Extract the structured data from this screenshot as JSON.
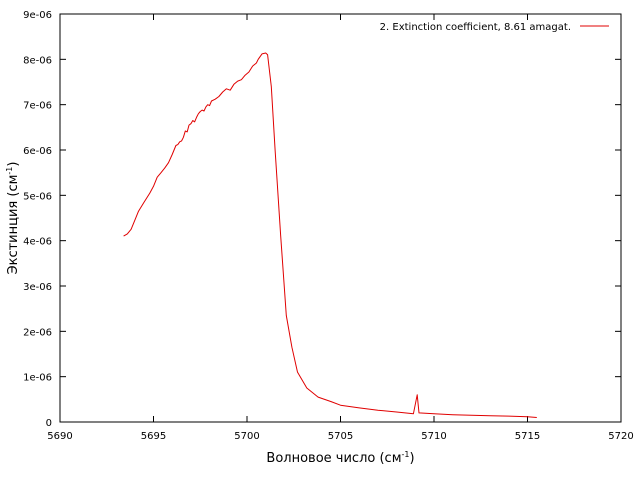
{
  "chart_data": {
    "type": "line",
    "title": "",
    "xlabel": "Волновое число (см",
    "xlabel_sup": "-1",
    "xlabel_suffix": ")",
    "ylabel": "Экстинция (см",
    "ylabel_sup": "-1",
    "ylabel_suffix": ")",
    "xlim": [
      5690,
      5720
    ],
    "ylim": [
      0,
      9e-06
    ],
    "x_ticks": [
      5690,
      5695,
      5700,
      5705,
      5710,
      5715,
      5720
    ],
    "x_tick_labels": [
      "5690",
      "5695",
      "5700",
      "5705",
      "5710",
      "5715",
      "5720"
    ],
    "y_ticks": [
      0,
      1e-06,
      2e-06,
      3e-06,
      4e-06,
      5e-06,
      6e-06,
      7e-06,
      8e-06,
      9e-06
    ],
    "y_tick_labels": [
      "0",
      "1e-06",
      "2e-06",
      "3e-06",
      "4e-06",
      "5e-06",
      "6e-06",
      "7e-06",
      "8e-06",
      "9e-06"
    ],
    "grid": false,
    "legend_position": "top-right",
    "series": [
      {
        "name": "2. Extinction coefficient, 8.61 amagat.",
        "color": "#e00000",
        "points": [
          [
            5693.4,
            4.1e-06
          ],
          [
            5693.6,
            4.15e-06
          ],
          [
            5693.8,
            4.25e-06
          ],
          [
            5694.0,
            4.45e-06
          ],
          [
            5694.2,
            4.65e-06
          ],
          [
            5694.5,
            4.85e-06
          ],
          [
            5694.8,
            5.05e-06
          ],
          [
            5695.0,
            5.2e-06
          ],
          [
            5695.2,
            5.4e-06
          ],
          [
            5695.4,
            5.5e-06
          ],
          [
            5695.6,
            5.6e-06
          ],
          [
            5695.8,
            5.72e-06
          ],
          [
            5696.0,
            5.9e-06
          ],
          [
            5696.2,
            6.1e-06
          ],
          [
            5696.3,
            6.12e-06
          ],
          [
            5696.4,
            6.18e-06
          ],
          [
            5696.5,
            6.2e-06
          ],
          [
            5696.6,
            6.28e-06
          ],
          [
            5696.7,
            6.42e-06
          ],
          [
            5696.8,
            6.4e-06
          ],
          [
            5696.9,
            6.55e-06
          ],
          [
            5697.0,
            6.58e-06
          ],
          [
            5697.1,
            6.65e-06
          ],
          [
            5697.2,
            6.62e-06
          ],
          [
            5697.3,
            6.72e-06
          ],
          [
            5697.4,
            6.8e-06
          ],
          [
            5697.5,
            6.85e-06
          ],
          [
            5697.6,
            6.88e-06
          ],
          [
            5697.7,
            6.86e-06
          ],
          [
            5697.8,
            6.95e-06
          ],
          [
            5697.9,
            7e-06
          ],
          [
            5698.0,
            6.98e-06
          ],
          [
            5698.1,
            7.08e-06
          ],
          [
            5698.3,
            7.12e-06
          ],
          [
            5698.5,
            7.18e-06
          ],
          [
            5698.7,
            7.28e-06
          ],
          [
            5698.9,
            7.35e-06
          ],
          [
            5699.1,
            7.32e-06
          ],
          [
            5699.3,
            7.45e-06
          ],
          [
            5699.5,
            7.52e-06
          ],
          [
            5699.7,
            7.55e-06
          ],
          [
            5699.9,
            7.65e-06
          ],
          [
            5700.1,
            7.72e-06
          ],
          [
            5700.3,
            7.85e-06
          ],
          [
            5700.5,
            7.92e-06
          ],
          [
            5700.6,
            8e-06
          ],
          [
            5700.8,
            8.12e-06
          ],
          [
            5701.0,
            8.14e-06
          ],
          [
            5701.1,
            8.1e-06
          ],
          [
            5701.3,
            7.4e-06
          ],
          [
            5701.5,
            6e-06
          ],
          [
            5701.8,
            4.1e-06
          ],
          [
            5702.1,
            2.35e-06
          ],
          [
            5702.4,
            1.65e-06
          ],
          [
            5702.7,
            1.1e-06
          ],
          [
            5703.2,
            7.5e-07
          ],
          [
            5703.8,
            5.5e-07
          ],
          [
            5704.5,
            4.5e-07
          ],
          [
            5705.0,
            3.7e-07
          ],
          [
            5706.0,
            3.1e-07
          ],
          [
            5707.0,
            2.6e-07
          ],
          [
            5708.0,
            2.2e-07
          ],
          [
            5708.9,
            1.8e-07
          ],
          [
            5709.1,
            6e-07
          ],
          [
            5709.2,
            2e-07
          ],
          [
            5710.0,
            1.8e-07
          ],
          [
            5711.0,
            1.6e-07
          ],
          [
            5712.0,
            1.5e-07
          ],
          [
            5713.0,
            1.4e-07
          ],
          [
            5714.0,
            1.3e-07
          ],
          [
            5715.0,
            1.15e-07
          ],
          [
            5715.5,
            1e-07
          ]
        ]
      }
    ]
  }
}
